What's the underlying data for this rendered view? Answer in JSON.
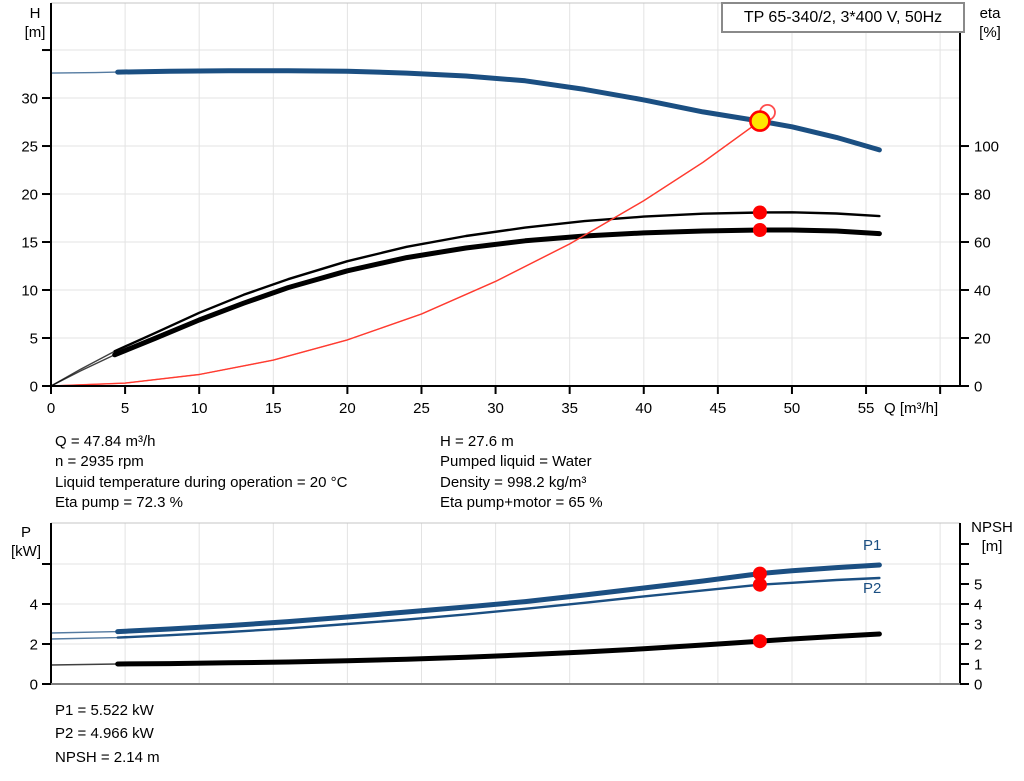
{
  "title_box": {
    "label": "TP 65-340/2, 3*400 V, 50Hz"
  },
  "axis_labels": {
    "h": [
      "H",
      "[m]"
    ],
    "eta": [
      "eta",
      "[%]"
    ],
    "q": "Q [m³/h]",
    "p": [
      "P",
      "[kW]"
    ],
    "npsh": [
      "NPSH",
      "[m]"
    ]
  },
  "curve_labels": {
    "p1": "P1",
    "p2": "P2"
  },
  "annotations": {
    "mid_left": [
      "Q = 47.84 m³/h",
      "n = 2935 rpm",
      "Liquid temperature during operation = 20 °C",
      "Eta pump = 72.3 %"
    ],
    "mid_right": [
      "H = 27.6 m",
      "Pumped liquid = Water",
      "Density = 998.2 kg/m³",
      "Eta pump+motor = 65 %"
    ],
    "bottom": [
      "P1 = 5.522 kW",
      "P2 = 4.966 kW",
      "NPSH = 2.14 m"
    ]
  },
  "colors": {
    "curve_blue": "#1b4f82",
    "curve_black": "#000000",
    "system_red": "#ff3b30",
    "marker_red": "#ff0000",
    "duty_yellow": "#ffe600",
    "grid": "#e3e3e3",
    "frame": "#c4c4c4"
  },
  "duty_point": {
    "Q": 47.84,
    "H": 27.6,
    "eta_pump": 72.3,
    "eta_pump_motor": 65,
    "P1": 5.522,
    "P2": 4.966,
    "NPSH": 2.14,
    "n_rpm": 2935
  },
  "chart_data": [
    {
      "type": "line",
      "title": "TP 65-340/2, 3*400 V, 50Hz",
      "xlabel": "Q [m³/h]",
      "x_range": [
        0,
        61.34
      ],
      "left_axis": {
        "label": "H [m]",
        "range": [
          0,
          39.9
        ]
      },
      "right_axis": {
        "label": "eta [%]",
        "range": [
          0,
          159.6
        ]
      },
      "x_grid": [
        5,
        10,
        15,
        20,
        25,
        30,
        35,
        40,
        45,
        50,
        55,
        60
      ],
      "y_grid": [
        5,
        10,
        15,
        20,
        25,
        30,
        35
      ],
      "x_ticks": [
        {
          "q": 0,
          "label": "0"
        },
        {
          "q": 5,
          "label": "5"
        },
        {
          "q": 10,
          "label": "10"
        },
        {
          "q": 15,
          "label": "15"
        },
        {
          "q": 20,
          "label": "20"
        },
        {
          "q": 25,
          "label": "25"
        },
        {
          "q": 30,
          "label": "30"
        },
        {
          "q": 35,
          "label": "35"
        },
        {
          "q": 40,
          "label": "40"
        },
        {
          "q": 45,
          "label": "45"
        },
        {
          "q": 50,
          "label": "50"
        },
        {
          "q": 55,
          "label": "55"
        },
        {
          "q": 60,
          "label": null
        }
      ],
      "left_ticks": [
        {
          "v": 0,
          "label": "0"
        },
        {
          "v": 5,
          "label": "5"
        },
        {
          "v": 10,
          "label": "10"
        },
        {
          "v": 15,
          "label": "15"
        },
        {
          "v": 20,
          "label": "20"
        },
        {
          "v": 25,
          "label": "25"
        },
        {
          "v": 30,
          "label": "30"
        },
        {
          "v": 35,
          "label": null
        }
      ],
      "right_ticks": [
        {
          "v": 0,
          "label": "0"
        },
        {
          "v": 20,
          "label": "20"
        },
        {
          "v": 40,
          "label": "40"
        },
        {
          "v": 60,
          "label": "60"
        },
        {
          "v": 80,
          "label": "80"
        },
        {
          "v": 100,
          "label": "100"
        }
      ],
      "series": [
        {
          "id": "h-q-curve",
          "name": "H",
          "axis": "left",
          "color": "#1b4f82",
          "width": 5,
          "thin_until": 4.5,
          "points": [
            [
              0,
              32.6
            ],
            [
              3,
              32.65
            ],
            [
              4.5,
              32.7
            ],
            [
              8,
              32.8
            ],
            [
              12,
              32.85
            ],
            [
              16,
              32.85
            ],
            [
              20,
              32.8
            ],
            [
              24,
              32.6
            ],
            [
              28,
              32.3
            ],
            [
              32,
              31.8
            ],
            [
              36,
              30.9
            ],
            [
              40,
              29.8
            ],
            [
              44,
              28.55
            ],
            [
              47.84,
              27.6
            ],
            [
              50,
              27.0
            ],
            [
              53,
              25.9
            ],
            [
              55.9,
              24.6
            ]
          ]
        },
        {
          "id": "eta-pump-curve",
          "name": "eta pump",
          "axis": "right",
          "color": "#000000",
          "width": 2.4,
          "thin_until": 4.3,
          "points": [
            [
              0,
              0
            ],
            [
              2,
              7
            ],
            [
              4.3,
              14.5
            ],
            [
              7,
              22
            ],
            [
              10,
              30.5
            ],
            [
              13,
              38
            ],
            [
              16,
              44.5
            ],
            [
              20,
              52
            ],
            [
              24,
              58
            ],
            [
              28,
              62.5
            ],
            [
              32,
              66
            ],
            [
              36,
              68.7
            ],
            [
              40,
              70.6
            ],
            [
              44,
              71.8
            ],
            [
              47.84,
              72.3
            ],
            [
              50,
              72.4
            ],
            [
              53,
              71.9
            ],
            [
              55.9,
              70.8
            ]
          ]
        },
        {
          "id": "eta-pump-motor-curve",
          "name": "eta pump+motor",
          "axis": "right",
          "color": "#000000",
          "width": 5,
          "thin_until": 4.3,
          "points": [
            [
              0,
              0
            ],
            [
              2,
              6.3
            ],
            [
              4.3,
              13
            ],
            [
              7,
              19.8
            ],
            [
              10,
              27.5
            ],
            [
              13,
              34.5
            ],
            [
              16,
              41
            ],
            [
              20,
              48
            ],
            [
              24,
              53.5
            ],
            [
              28,
              57.5
            ],
            [
              32,
              60.5
            ],
            [
              36,
              62.5
            ],
            [
              40,
              63.8
            ],
            [
              44,
              64.6
            ],
            [
              47.84,
              65
            ],
            [
              50,
              65
            ],
            [
              53,
              64.6
            ],
            [
              55.9,
              63.5
            ]
          ]
        },
        {
          "id": "system-curve",
          "name": "QH system curve",
          "axis": "left",
          "color": "#ff3b30",
          "width": 1.3,
          "thin_until": 0,
          "points": [
            [
              0,
              0
            ],
            [
              5,
              0.3
            ],
            [
              10,
              1.2
            ],
            [
              15,
              2.7
            ],
            [
              20,
              4.8
            ],
            [
              25,
              7.5
            ],
            [
              30,
              10.9
            ],
            [
              35,
              14.8
            ],
            [
              40,
              19.3
            ],
            [
              44,
              23.3
            ],
            [
              47.84,
              27.6
            ],
            [
              48.3,
              28.2
            ]
          ]
        }
      ],
      "markers": [
        {
          "id": "rated-point-marker",
          "style": "open",
          "q": 48.35,
          "value": 28.5,
          "axis": "left"
        },
        {
          "id": "duty-point-marker",
          "style": "duty",
          "q": 47.84,
          "value": 27.6,
          "axis": "left"
        },
        {
          "id": "eta-pump-duty-dot",
          "style": "dot",
          "q": 47.84,
          "value": 72.3,
          "axis": "right"
        },
        {
          "id": "eta-pump-motor-duty-dot",
          "style": "dot",
          "q": 47.84,
          "value": 65,
          "axis": "right"
        }
      ]
    },
    {
      "type": "line",
      "title": "Power and NPSH",
      "xlabel": "",
      "x_range": [
        0,
        61.34
      ],
      "left_axis": {
        "label": "P [kW]",
        "range": [
          0,
          8.05
        ]
      },
      "right_axis": {
        "label": "NPSH [m]",
        "range": [
          0,
          8.05
        ]
      },
      "x_grid": [
        5,
        10,
        15,
        20,
        25,
        30,
        35,
        40,
        45,
        50,
        55,
        60
      ],
      "y_grid": [
        2,
        4,
        6
      ],
      "x_ticks": [],
      "left_ticks": [
        {
          "v": 0,
          "label": "0"
        },
        {
          "v": 2,
          "label": "2"
        },
        {
          "v": 4,
          "label": "4"
        },
        {
          "v": 6,
          "label": null
        }
      ],
      "right_ticks": [
        {
          "v": 0,
          "label": "0"
        },
        {
          "v": 1,
          "label": "1"
        },
        {
          "v": 2,
          "label": "2"
        },
        {
          "v": 3,
          "label": "3"
        },
        {
          "v": 4,
          "label": "4"
        },
        {
          "v": 5,
          "label": "5"
        },
        {
          "v": 6,
          "label": null
        },
        {
          "v": 7,
          "label": null
        }
      ],
      "series": [
        {
          "id": "p1-curve",
          "name": "P1",
          "axis": "left",
          "color": "#1b4f82",
          "width": 5,
          "thin_until": 4.5,
          "points": [
            [
              0,
              2.55
            ],
            [
              4.5,
              2.62
            ],
            [
              8,
              2.75
            ],
            [
              12,
              2.92
            ],
            [
              16,
              3.12
            ],
            [
              20,
              3.35
            ],
            [
              24,
              3.6
            ],
            [
              28,
              3.85
            ],
            [
              32,
              4.12
            ],
            [
              36,
              4.45
            ],
            [
              40,
              4.8
            ],
            [
              44,
              5.15
            ],
            [
              47.84,
              5.522
            ],
            [
              50,
              5.66
            ],
            [
              53,
              5.82
            ],
            [
              55.9,
              5.95
            ]
          ]
        },
        {
          "id": "p2-curve",
          "name": "P2",
          "axis": "left",
          "color": "#1b4f82",
          "width": 2.4,
          "thin_until": 4.5,
          "points": [
            [
              0,
              2.25
            ],
            [
              4.5,
              2.32
            ],
            [
              8,
              2.44
            ],
            [
              12,
              2.6
            ],
            [
              16,
              2.78
            ],
            [
              20,
              3.0
            ],
            [
              24,
              3.22
            ],
            [
              28,
              3.48
            ],
            [
              32,
              3.76
            ],
            [
              36,
              4.06
            ],
            [
              40,
              4.38
            ],
            [
              44,
              4.68
            ],
            [
              47.84,
              4.966
            ],
            [
              50,
              5.06
            ],
            [
              53,
              5.2
            ],
            [
              55.9,
              5.3
            ]
          ]
        },
        {
          "id": "npsh-curve",
          "name": "NPSH",
          "axis": "right",
          "color": "#000000",
          "width": 5,
          "thin_until": 4.5,
          "points": [
            [
              0,
              0.95
            ],
            [
              4.5,
              1.0
            ],
            [
              8,
              1.02
            ],
            [
              12,
              1.06
            ],
            [
              16,
              1.1
            ],
            [
              20,
              1.16
            ],
            [
              24,
              1.24
            ],
            [
              28,
              1.34
            ],
            [
              32,
              1.46
            ],
            [
              36,
              1.6
            ],
            [
              40,
              1.76
            ],
            [
              44,
              1.95
            ],
            [
              47.84,
              2.14
            ],
            [
              50,
              2.25
            ],
            [
              53,
              2.38
            ],
            [
              55.9,
              2.5
            ]
          ]
        }
      ],
      "markers": [
        {
          "id": "p1-duty-dot",
          "style": "dot",
          "q": 47.84,
          "value": 5.522,
          "axis": "left"
        },
        {
          "id": "p2-duty-dot",
          "style": "dot",
          "q": 47.84,
          "value": 4.966,
          "axis": "left"
        },
        {
          "id": "npsh-duty-dot",
          "style": "dot",
          "q": 47.84,
          "value": 2.14,
          "axis": "right"
        }
      ]
    }
  ]
}
